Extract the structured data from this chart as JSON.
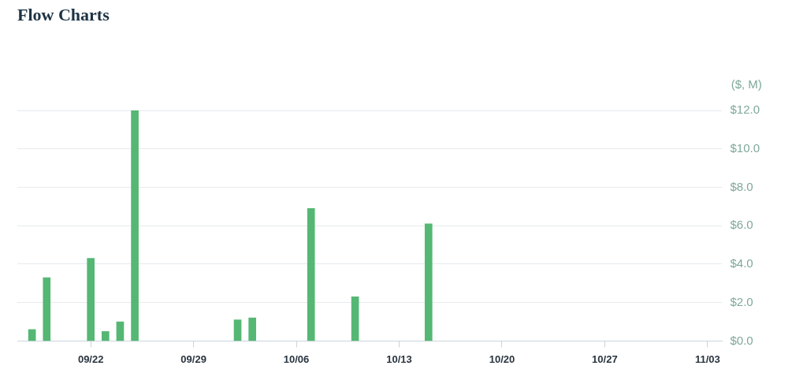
{
  "chart_data": {
    "type": "bar",
    "title": "Flow Charts",
    "ylabel": "($, M)",
    "x": [
      "--09-18",
      "--09-19",
      "--09-22",
      "--09-23",
      "--09-24",
      "--09-25",
      "--10-02",
      "--10-03",
      "--10-07",
      "--10-10",
      "--10-15"
    ],
    "values": [
      0.6,
      3.3,
      4.3,
      0.5,
      1.0,
      12.0,
      1.1,
      1.2,
      6.9,
      2.3,
      6.1
    ],
    "color": "#55b774",
    "xlim": [
      "--09-17",
      "--11-04"
    ],
    "xticks": [
      {
        "value": "--09-22",
        "label": "09/22"
      },
      {
        "value": "--09-29",
        "label": "09/29"
      },
      {
        "value": "--10-06",
        "label": "10/06"
      },
      {
        "value": "--10-13",
        "label": "10/13"
      },
      {
        "value": "--10-20",
        "label": "10/20"
      },
      {
        "value": "--10-27",
        "label": "10/27"
      },
      {
        "value": "--11-03",
        "label": "11/03"
      }
    ],
    "ylim": [
      0,
      12
    ],
    "yticks": [
      {
        "value": 0,
        "label": "$0.0"
      },
      {
        "value": 2,
        "label": "$2.0"
      },
      {
        "value": 4,
        "label": "$4.0"
      },
      {
        "value": 6,
        "label": "$6.0"
      },
      {
        "value": 8,
        "label": "$8.0"
      },
      {
        "value": 10,
        "label": "$10.0"
      },
      {
        "value": 12,
        "label": "$12.0"
      }
    ],
    "grid": "y",
    "legend": false
  }
}
